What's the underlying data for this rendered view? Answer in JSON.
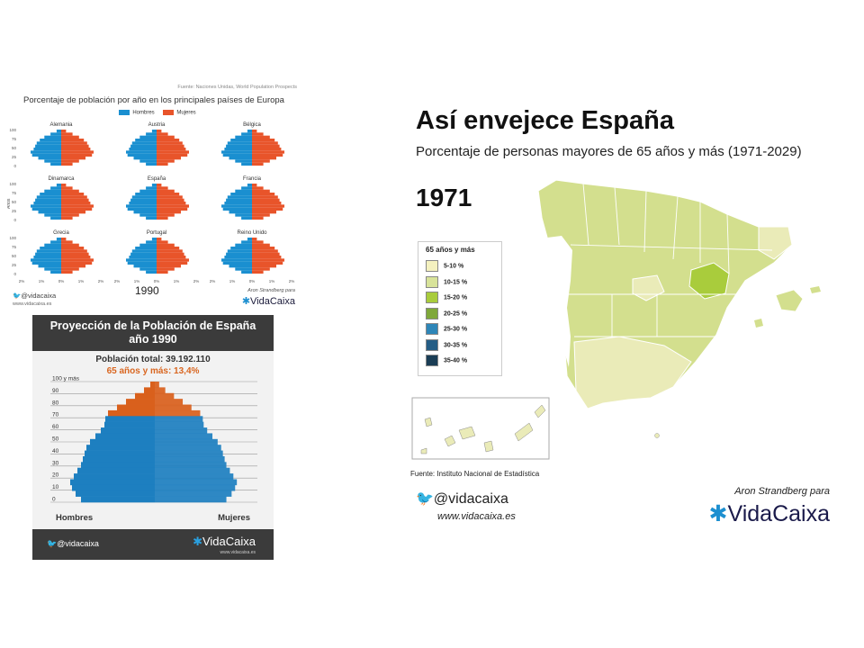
{
  "europe": {
    "source": "Fuente: Naciones Unidas, World Population Prospects",
    "title": "Porcentaje de población por año en los principales países de Europa",
    "legend": {
      "men": "Hombres",
      "women": "Mujeres",
      "men_color": "#1a8fd0",
      "women_color": "#e8542a"
    },
    "countries": [
      "Alemania",
      "Austria",
      "Bélgica",
      "Dinamarca",
      "España",
      "Francia",
      "Grecia",
      "Portugal",
      "Reino Unido"
    ],
    "yaxis_label": "Años",
    "yticks": [
      "100",
      "75",
      "50",
      "25",
      "0"
    ],
    "xticks": [
      "2%",
      "1%",
      "0%",
      "1%",
      "2%"
    ],
    "year": "1990",
    "twitter": "@vidacaixa",
    "web": "www.vidacaixa.es",
    "credit": "Aron Strandberg para",
    "brand": "VidaCaixa"
  },
  "projection": {
    "title_line1": "Proyección de la Población de España",
    "title_line2": "año 1990",
    "total": "Población total: 39.192.110",
    "over65": "65 años y más: 13,4%",
    "age_labels": [
      "100 y más",
      "90",
      "80",
      "70",
      "60",
      "50",
      "40",
      "30",
      "20",
      "10",
      "0"
    ],
    "men": "Hombres",
    "women": "Mujeres",
    "twitter": "@vidacaixa",
    "brand": "VidaCaixa",
    "web": "www.vidacaixa.es",
    "colors": {
      "young": "#1d7fc0",
      "old": "#d9601c"
    }
  },
  "spain": {
    "title": "Así envejece España",
    "subtitle": "Porcentaje de personas mayores de 65 años y más (1971-2029)",
    "year": "1971",
    "legend_title": "65 años y más",
    "legend": [
      {
        "label": "5-10 %",
        "color": "#f4f1bf"
      },
      {
        "label": "10-15 %",
        "color": "#d8e39a"
      },
      {
        "label": "15-20 %",
        "color": "#a9cc3c"
      },
      {
        "label": "20-25 %",
        "color": "#7fa83a"
      },
      {
        "label": "25-30 %",
        "color": "#2e86b8"
      },
      {
        "label": "30-35 %",
        "color": "#245d85"
      },
      {
        "label": "35-40 %",
        "color": "#1a3d55"
      }
    ],
    "source": "Fuente: Instituto Nacional de Estadística",
    "twitter": "@vidacaixa",
    "web": "www.vidacaixa.es",
    "credit": "Aron Strandberg para",
    "brand": "VidaCaixa"
  }
}
